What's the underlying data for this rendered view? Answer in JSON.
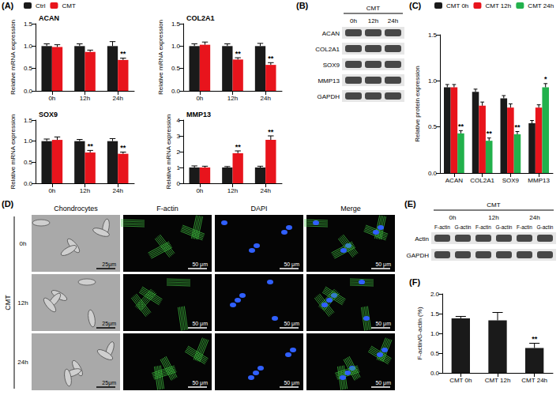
{
  "chart_data": [
    {
      "type": "bar",
      "panel": "(A)",
      "title": "ACAN",
      "categories": [
        "0h",
        "12h",
        "24h"
      ],
      "ylabel": "Relative mRNA expression",
      "ylim": [
        0,
        1.5
      ],
      "yticks": [
        {
          "value": 0,
          "label": "0.0"
        },
        {
          "value": 0.5,
          "label": "0.5"
        },
        {
          "value": 1,
          "label": "1.0"
        },
        {
          "value": 1.5,
          "label": "1.5"
        }
      ],
      "grid": false,
      "legend": "top-left",
      "series": [
        {
          "name": "Ctrl",
          "color": "#1a1a1a",
          "values": [
            1.0,
            1.0,
            1.0
          ],
          "errors": [
            0.05,
            0.05,
            0.1
          ],
          "annotations": [
            null,
            null,
            null
          ]
        },
        {
          "name": "CMT",
          "color": "#e8141c",
          "values": [
            0.98,
            0.87,
            0.69
          ],
          "errors": [
            0.05,
            0.04,
            0.04
          ],
          "annotations": [
            null,
            null,
            "**"
          ]
        }
      ]
    },
    {
      "type": "bar",
      "title": "COL2A1",
      "categories": [
        "0h",
        "12h",
        "24h"
      ],
      "ylabel": "Relative mRNA expression",
      "ylim": [
        0,
        1.5
      ],
      "yticks": [
        {
          "value": 0,
          "label": "0.0"
        },
        {
          "value": 0.5,
          "label": "0.5"
        },
        {
          "value": 1,
          "label": "1.0"
        },
        {
          "value": 1.5,
          "label": "1.5"
        }
      ],
      "grid": false,
      "series": [
        {
          "name": "Ctrl",
          "color": "#1a1a1a",
          "values": [
            1.0,
            1.0,
            1.0
          ],
          "errors": [
            0.05,
            0.05,
            0.06
          ],
          "annotations": [
            null,
            null,
            null
          ]
        },
        {
          "name": "CMT",
          "color": "#e8141c",
          "values": [
            1.03,
            0.7,
            0.58
          ],
          "errors": [
            0.06,
            0.04,
            0.05
          ],
          "annotations": [
            null,
            "**",
            "**"
          ]
        }
      ]
    },
    {
      "type": "bar",
      "title": "SOX9",
      "categories": [
        "0h",
        "12h",
        "24h"
      ],
      "ylabel": "Relative mRNA expression",
      "ylim": [
        0,
        1.5
      ],
      "yticks": [
        {
          "value": 0,
          "label": "0.0"
        },
        {
          "value": 0.5,
          "label": "0.5"
        },
        {
          "value": 1,
          "label": "1.0"
        },
        {
          "value": 1.5,
          "label": "1.5"
        }
      ],
      "grid": false,
      "series": [
        {
          "name": "Ctrl",
          "color": "#1a1a1a",
          "values": [
            1.0,
            1.0,
            1.0
          ],
          "errors": [
            0.05,
            0.04,
            0.06
          ],
          "annotations": [
            null,
            null,
            null
          ]
        },
        {
          "name": "CMT",
          "color": "#e8141c",
          "values": [
            1.03,
            0.73,
            0.7
          ],
          "errors": [
            0.07,
            0.05,
            0.04
          ],
          "annotations": [
            null,
            "**",
            "**"
          ]
        }
      ]
    },
    {
      "type": "bar",
      "title": "MMP13",
      "categories": [
        "0h",
        "12h",
        "24h"
      ],
      "ylabel": "Relative mRNA expression",
      "ylim": [
        0,
        4
      ],
      "yticks": [
        0,
        1,
        2,
        3,
        4
      ],
      "grid": false,
      "series": [
        {
          "name": "Ctrl",
          "color": "#1a1a1a",
          "values": [
            1.0,
            1.0,
            1.0
          ],
          "errors": [
            0.1,
            0.06,
            0.08
          ],
          "annotations": [
            null,
            null,
            null
          ]
        },
        {
          "name": "CMT",
          "color": "#e8141c",
          "values": [
            1.0,
            1.9,
            2.75
          ],
          "errors": [
            0.08,
            0.15,
            0.25
          ],
          "annotations": [
            null,
            "**",
            "**"
          ]
        }
      ]
    },
    {
      "type": "bar",
      "panel": "(C)",
      "categories": [
        "ACAN",
        "COL2A1",
        "SOX9",
        "MMP13"
      ],
      "ylabel": "Relative protein expression",
      "ylim": [
        0,
        1.5
      ],
      "yticks": [
        {
          "value": 0,
          "label": "0.0"
        },
        {
          "value": 0.5,
          "label": "0.5"
        },
        {
          "value": 1,
          "label": "1.0"
        },
        {
          "value": 1.5,
          "label": "1.5"
        }
      ],
      "grid": false,
      "legend": "top",
      "series": [
        {
          "name": "CMT 0h",
          "color": "#1a1a1a",
          "values": [
            0.93,
            0.88,
            0.81,
            0.54
          ],
          "errors": [
            0.03,
            0.03,
            0.03,
            0.03
          ],
          "annotations": [
            null,
            null,
            null,
            null
          ]
        },
        {
          "name": "CMT 12h",
          "color": "#e8141c",
          "values": [
            0.93,
            0.73,
            0.71,
            0.71
          ],
          "errors": [
            0.03,
            0.04,
            0.04,
            0.03
          ],
          "annotations": [
            null,
            null,
            null,
            null
          ]
        },
        {
          "name": "CMT 24h",
          "color": "#22b14c",
          "values": [
            0.43,
            0.35,
            0.42,
            0.93
          ],
          "errors": [
            0.03,
            0.03,
            0.03,
            0.04
          ],
          "annotations": [
            "**",
            "**",
            "**",
            "*"
          ]
        }
      ]
    },
    {
      "type": "bar",
      "panel": "(F)",
      "categories": [
        "CMT 0h",
        "CMT 12h",
        "CMT 24h"
      ],
      "ylabel": "F-actin/G-actin (%)",
      "ylim": [
        0,
        2
      ],
      "yticks": [
        {
          "value": 0,
          "label": "0.0"
        },
        {
          "value": 0.5,
          "label": "0.5"
        },
        {
          "value": 1,
          "label": "1.0"
        },
        {
          "value": 1.5,
          "label": "1.5"
        },
        {
          "value": 2,
          "label": "2.0"
        }
      ],
      "grid": false,
      "color": "#1a1a1a",
      "values": [
        1.38,
        1.33,
        0.63
      ],
      "errors": [
        0.05,
        0.2,
        0.12
      ],
      "annotations": [
        null,
        null,
        "**"
      ]
    }
  ],
  "blots": [
    {
      "panel": "(B)",
      "header": "CMT",
      "lanes": [
        "0h",
        "12h",
        "24h"
      ],
      "rows": [
        "ACAN",
        "COL2A1",
        "SOX9",
        "MMP13",
        "GAPDH"
      ]
    },
    {
      "panel": "(E)",
      "header": "CMT",
      "groups": [
        "0h",
        "12h",
        "24h"
      ],
      "lanes": [
        "F-actin",
        "G-actin"
      ],
      "rows": [
        "Actin",
        "GAPDH"
      ]
    }
  ],
  "images": {
    "panel": "(D)",
    "group": "CMT",
    "rows": [
      "0h",
      "12h",
      "24h"
    ],
    "columns": [
      "Chondrocytes",
      "F-actin",
      "DAPI",
      "Merge"
    ],
    "scale_bars": [
      "25μm",
      "50 μm",
      "50 μm",
      "50 μm"
    ]
  }
}
